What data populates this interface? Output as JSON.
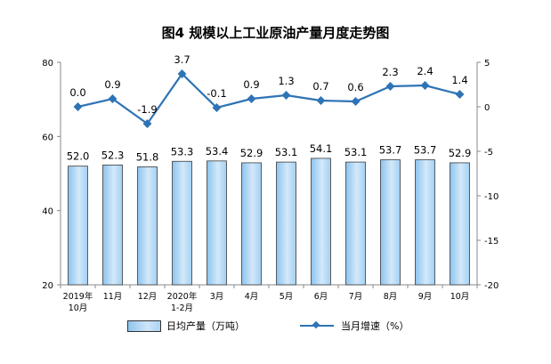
{
  "title": "图4  规模以上工业原油产量月度走势图",
  "chart_data": {
    "type": "bar+line",
    "title": "图4  规模以上工业原油产量月度走势图",
    "categories": [
      [
        "2019年",
        "10月"
      ],
      [
        "11月"
      ],
      [
        "12月"
      ],
      [
        "2020年",
        "1-2月"
      ],
      [
        "3月"
      ],
      [
        "4月"
      ],
      [
        "5月"
      ],
      [
        "6月"
      ],
      [
        "7月"
      ],
      [
        "8月"
      ],
      [
        "9月"
      ],
      [
        "10月"
      ]
    ],
    "series": [
      {
        "name": "日均产量（万吨）",
        "type": "bar",
        "axis": "left",
        "values": [
          52.0,
          52.3,
          51.8,
          53.3,
          53.4,
          52.9,
          53.1,
          54.1,
          53.1,
          53.7,
          53.7,
          52.9
        ],
        "labels": [
          "52.0",
          "52.3",
          "51.8",
          "53.3",
          "53.4",
          "52.9",
          "53.1",
          "54.1",
          "53.1",
          "53.7",
          "53.7",
          "52.9"
        ],
        "color": "#a9d4f4"
      },
      {
        "name": "当月增速（%）",
        "type": "line",
        "axis": "right",
        "values": [
          0.0,
          0.9,
          -1.9,
          3.7,
          -0.1,
          0.9,
          1.3,
          0.7,
          0.6,
          2.3,
          2.4,
          1.4
        ],
        "labels": [
          "0.0",
          "0.9",
          "-1.9",
          "3.7",
          "-0.1",
          "0.9",
          "1.3",
          "0.7",
          "0.6",
          "2.3",
          "2.4",
          "1.4"
        ],
        "color": "#2e74b5"
      }
    ],
    "y_left": {
      "ylim": [
        20,
        80
      ],
      "ticks": [
        "20",
        "40",
        "60",
        "80"
      ],
      "values": [
        20,
        40,
        60,
        80
      ]
    },
    "y_right": {
      "ylim": [
        -20,
        5
      ],
      "ticks": [
        "-20",
        "-15",
        "-10",
        "-5",
        "0",
        "5"
      ],
      "values": [
        -20,
        -15,
        -10,
        -5,
        0,
        5
      ]
    },
    "grid": false,
    "legend_position": "bottom"
  }
}
